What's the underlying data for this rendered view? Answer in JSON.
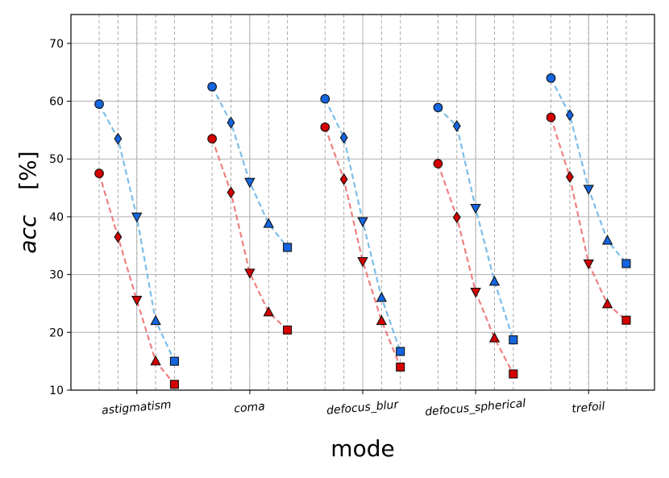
{
  "chart_data": {
    "type": "line",
    "title": "",
    "xlabel": "mode",
    "ylabel_var": "acc",
    "ylabel_unit": "[%]",
    "ylim": [
      10,
      75
    ],
    "yticks": [
      10,
      20,
      30,
      40,
      50,
      60,
      70
    ],
    "grid": true,
    "categories": [
      "astigmatism",
      "coma",
      "defocus_blur",
      "defocus_spherical",
      "trefoil"
    ],
    "levels_per_category": 5,
    "markers": [
      "circle",
      "diamond",
      "triangle-down",
      "triangle-up",
      "square"
    ],
    "series": [
      {
        "color": "#1565e0",
        "line_color": "#7dbde8",
        "values": [
          [
            59.5,
            53.5,
            40.0,
            22.0,
            15.0
          ],
          [
            62.5,
            56.3,
            46.0,
            38.8,
            34.7
          ],
          [
            60.4,
            53.7,
            39.2,
            26.0,
            16.7
          ],
          [
            58.9,
            55.7,
            41.5,
            28.8,
            18.7
          ],
          [
            64.0,
            57.6,
            44.8,
            35.9,
            31.9
          ]
        ]
      },
      {
        "color": "#d40000",
        "line_color": "#ee8080",
        "values": [
          [
            47.5,
            36.5,
            25.6,
            15.0,
            11.0
          ],
          [
            53.5,
            44.2,
            30.3,
            23.5,
            20.4
          ],
          [
            55.5,
            46.5,
            32.3,
            22.0,
            14.0
          ],
          [
            49.2,
            39.9,
            27.0,
            19.0,
            12.8
          ],
          [
            57.2,
            46.9,
            31.9,
            24.9,
            22.1
          ]
        ]
      }
    ]
  }
}
